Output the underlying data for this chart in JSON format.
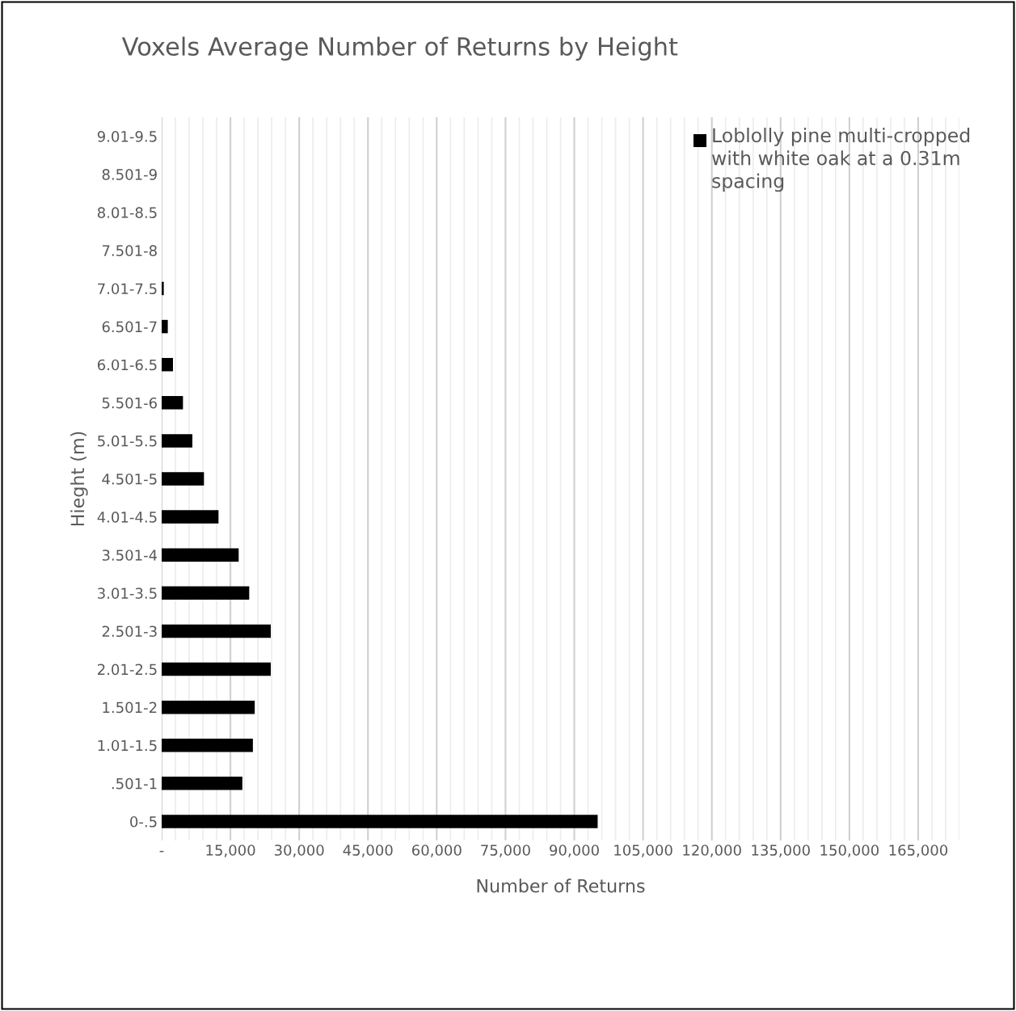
{
  "chart_data": {
    "type": "bar",
    "orientation": "horizontal",
    "title": "Voxels Average Number of Returns by Height",
    "xlabel": "Number of Returns",
    "ylabel": "Hieght (m)",
    "categories": [
      "9.01-9.5",
      "8.501-9",
      "8.01-8.5",
      "7.501-8",
      "7.01-7.5",
      "6.501-7",
      "6.01-6.5",
      "5.501-6",
      "5.01-5.5",
      "4.501-5",
      "4.01-4.5",
      "3.501-4",
      "3.01-3.5",
      "2.501-3",
      "2.01-2.5",
      "1.501-2",
      "1.01-1.5",
      ".501-1",
      "0-.5"
    ],
    "series": [
      {
        "name": "Loblolly pine multi-cropped with white oak at a 0.31m spacing",
        "color": "#000000",
        "values": [
          0,
          0,
          0,
          0,
          460,
          1340,
          2470,
          4650,
          6700,
          9230,
          12400,
          16800,
          19100,
          23800,
          23800,
          20300,
          19900,
          17600,
          95100
        ]
      }
    ],
    "xlim": [
      0,
      174000
    ],
    "xticks": [
      {
        "value": 0,
        "label": "-"
      },
      {
        "value": 3000,
        "label": null
      },
      {
        "value": 6000,
        "label": null
      },
      {
        "value": 9000,
        "label": null
      },
      {
        "value": 12000,
        "label": null
      },
      {
        "value": 15000,
        "label": "15,000"
      },
      {
        "value": 18000,
        "label": null
      },
      {
        "value": 21000,
        "label": null
      },
      {
        "value": 24000,
        "label": null
      },
      {
        "value": 27000,
        "label": null
      },
      {
        "value": 30000,
        "label": "30,000"
      },
      {
        "value": 33000,
        "label": null
      },
      {
        "value": 36000,
        "label": null
      },
      {
        "value": 39000,
        "label": null
      },
      {
        "value": 42000,
        "label": null
      },
      {
        "value": 45000,
        "label": "45,000"
      },
      {
        "value": 48000,
        "label": null
      },
      {
        "value": 51000,
        "label": null
      },
      {
        "value": 54000,
        "label": null
      },
      {
        "value": 57000,
        "label": null
      },
      {
        "value": 60000,
        "label": "60,000"
      },
      {
        "value": 63000,
        "label": null
      },
      {
        "value": 66000,
        "label": null
      },
      {
        "value": 69000,
        "label": null
      },
      {
        "value": 72000,
        "label": null
      },
      {
        "value": 75000,
        "label": "75,000"
      },
      {
        "value": 78000,
        "label": null
      },
      {
        "value": 81000,
        "label": null
      },
      {
        "value": 84000,
        "label": null
      },
      {
        "value": 87000,
        "label": null
      },
      {
        "value": 90000,
        "label": "90,000"
      },
      {
        "value": 93000,
        "label": null
      },
      {
        "value": 96000,
        "label": null
      },
      {
        "value": 99000,
        "label": null
      },
      {
        "value": 102000,
        "label": null
      },
      {
        "value": 105000,
        "label": "105,000"
      },
      {
        "value": 108000,
        "label": null
      },
      {
        "value": 111000,
        "label": null
      },
      {
        "value": 114000,
        "label": null
      },
      {
        "value": 117000,
        "label": null
      },
      {
        "value": 120000,
        "label": "120,000"
      },
      {
        "value": 123000,
        "label": null
      },
      {
        "value": 126000,
        "label": null
      },
      {
        "value": 129000,
        "label": null
      },
      {
        "value": 132000,
        "label": null
      },
      {
        "value": 135000,
        "label": "135,000"
      },
      {
        "value": 138000,
        "label": null
      },
      {
        "value": 141000,
        "label": null
      },
      {
        "value": 144000,
        "label": null
      },
      {
        "value": 147000,
        "label": null
      },
      {
        "value": 150000,
        "label": "150,000"
      },
      {
        "value": 153000,
        "label": null
      },
      {
        "value": 156000,
        "label": null
      },
      {
        "value": 159000,
        "label": null
      },
      {
        "value": 162000,
        "label": null
      },
      {
        "value": 165000,
        "label": "165,000"
      },
      {
        "value": 168000,
        "label": null
      },
      {
        "value": 171000,
        "label": null
      },
      {
        "value": 174000,
        "label": null
      }
    ],
    "grid": "x",
    "legend": "top right"
  }
}
